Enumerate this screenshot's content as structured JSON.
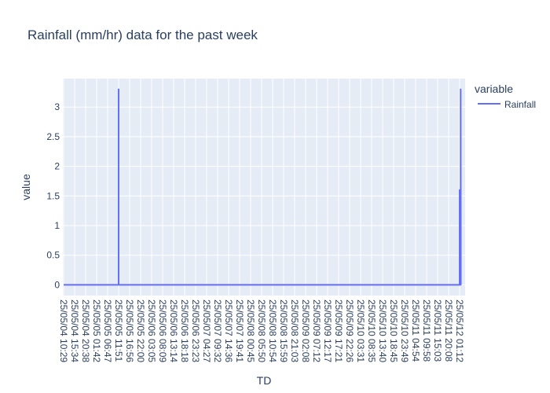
{
  "chart_data": {
    "type": "line",
    "title": "Rainfall (mm/hr)  data for the past week",
    "xlabel": "TD",
    "ylabel": "value",
    "ylim": [
      -0.18,
      3.48
    ],
    "yticks": [
      0,
      0.5,
      1,
      1.5,
      2,
      2.5,
      3
    ],
    "ytick_labels": [
      "0",
      "0.5",
      "1",
      "1.5",
      "2",
      "2.5",
      "3"
    ],
    "x_ticks": [
      "25/05/04 10:29",
      "25/05/04 15:34",
      "25/05/04 20:38",
      "25/05/05 01:42",
      "25/05/05 06:47",
      "25/05/05 11:51",
      "25/05/05 16:56",
      "25/05/05 22:00",
      "25/05/06 03:05",
      "25/05/06 08:09",
      "25/05/06 13:14",
      "25/05/06 18:18",
      "25/05/06 23:23",
      "25/05/07 04:27",
      "25/05/07 09:32",
      "25/05/07 14:36",
      "25/05/07 19:41",
      "25/05/08 00:45",
      "25/05/08 05:50",
      "25/05/08 10:54",
      "25/05/08 15:59",
      "25/05/08 21:03",
      "25/05/09 02:08",
      "25/05/09 07:12",
      "25/05/09 12:17",
      "25/05/09 17:21",
      "25/05/09 22:26",
      "25/05/10 03:31",
      "25/05/10 08:35",
      "25/05/10 13:40",
      "25/05/10 18:45",
      "25/05/10 23:49",
      "25/05/11 04:54",
      "25/05/11 09:58",
      "25/05/11 15:03",
      "25/05/11 20:08",
      "25/05/12 01:12"
    ],
    "series": [
      {
        "name": "Rainfall",
        "color": "#636efa",
        "points": [
          {
            "x": "25/05/04 10:29",
            "y": 0
          },
          {
            "x": "25/05/05 11:51",
            "y": 0
          },
          {
            "x": "25/05/05 11:51",
            "y": 3.3
          },
          {
            "x": "25/05/05 11:51",
            "y": 0
          },
          {
            "x": "25/05/12 01:12",
            "y": 0
          },
          {
            "x": "25/05/12 01:12",
            "y": 1.6
          },
          {
            "x": "25/05/12 01:12",
            "y": 0
          },
          {
            "x": "25/05/12 01:40",
            "y": 0
          },
          {
            "x": "25/05/12 01:40",
            "y": 3.3
          },
          {
            "x": "25/05/12 01:45",
            "y": 0
          }
        ]
      }
    ],
    "legend": {
      "title": "variable",
      "position": "top-right",
      "entries": [
        "Rainfall"
      ]
    },
    "grid": true
  }
}
